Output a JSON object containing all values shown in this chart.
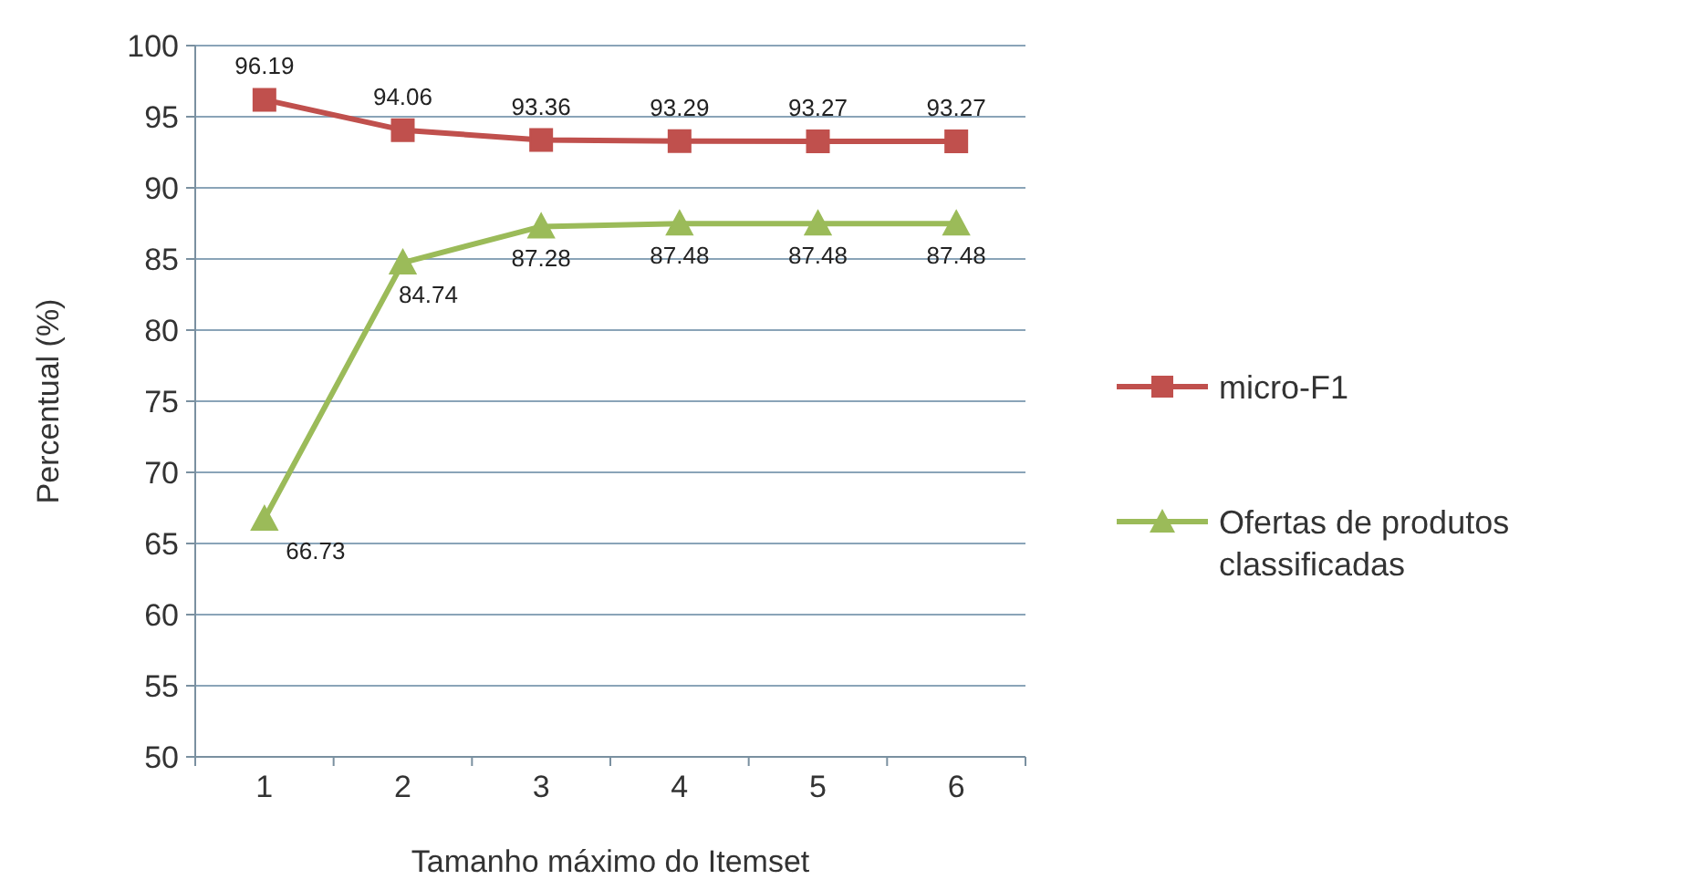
{
  "chart_data": {
    "type": "line",
    "xlabel": "Tamanho máximo do Itemset",
    "ylabel": "Percentual (%)",
    "categories": [
      "1",
      "2",
      "3",
      "4",
      "5",
      "6"
    ],
    "series": [
      {
        "name": "micro-F1",
        "color": "#c0504d",
        "marker": "square",
        "values": [
          96.19,
          94.06,
          93.36,
          93.29,
          93.27,
          93.27
        ]
      },
      {
        "name": "Ofertas de produtos classificadas",
        "color": "#9bbb59",
        "marker": "triangle",
        "values": [
          66.73,
          84.74,
          87.28,
          87.48,
          87.48,
          87.48
        ]
      }
    ],
    "ylim": [
      50,
      100
    ],
    "yticks": [
      50,
      55,
      60,
      65,
      70,
      75,
      80,
      85,
      90,
      95,
      100
    ],
    "grid": "y",
    "legend": "right",
    "data_labels": true,
    "line_style": "solid"
  }
}
